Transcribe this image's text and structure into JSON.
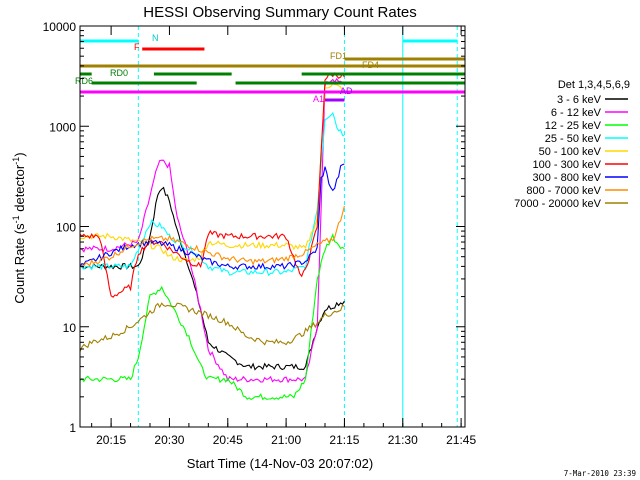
{
  "chart_data": {
    "type": "line",
    "title": "HESSI Observing Summary Count Rates",
    "xlabel": "Start Time (14-Nov-03 20:07:02)",
    "ylabel_main": "Count Rate (s",
    "ylabel_sup1": "-1",
    "ylabel_mid": " detector",
    "ylabel_sup2": "-1",
    "ylabel_end": ")",
    "xlim": [
      "20:07",
      "21:46"
    ],
    "ylim": [
      1,
      10000
    ],
    "y_scale": "log",
    "grid": false,
    "legend_position": "right",
    "x_ticks": [
      "20:15",
      "20:30",
      "20:45",
      "21:00",
      "21:15",
      "21:30",
      "21:45"
    ],
    "y_ticks": [
      "1",
      "10",
      "100",
      "1000",
      "10000"
    ],
    "legend_title": "Det 1,3,4,5,6,9",
    "footer_date": "7-Mar-2010 23:39",
    "series": [
      {
        "name": "3 - 6 keV",
        "color": "#000000",
        "x": [
          "20:07",
          "20:15",
          "20:22",
          "20:25",
          "20:27",
          "20:28",
          "20:30",
          "20:32",
          "20:35",
          "20:38",
          "20:40",
          "20:45",
          "20:50",
          "20:55",
          "21:00",
          "21:05",
          "21:08",
          "21:10",
          "21:12",
          "21:13",
          "21:15"
        ],
        "y": [
          40,
          40,
          40,
          80,
          210,
          250,
          180,
          90,
          40,
          15,
          7,
          5,
          4,
          4,
          4,
          4,
          10,
          15,
          16,
          17,
          18
        ]
      },
      {
        "name": "6 - 12 keV",
        "color": "#ff00ff",
        "x": [
          "20:07",
          "20:15",
          "20:22",
          "20:25",
          "20:27",
          "20:28",
          "20:30",
          "20:32",
          "20:35",
          "20:38",
          "20:40",
          "20:45",
          "20:50",
          "20:55",
          "21:00",
          "21:05",
          "21:08",
          "21:10",
          "21:12",
          "21:13",
          "21:15"
        ],
        "y": [
          60,
          60,
          70,
          200,
          400,
          450,
          400,
          120,
          50,
          15,
          6,
          3,
          3,
          3,
          3,
          3,
          10,
          2500,
          3000,
          2800,
          2600
        ]
      },
      {
        "name": "12 - 25 keV",
        "color": "#00ff00",
        "x": [
          "20:07",
          "20:15",
          "20:20",
          "20:22",
          "20:25",
          "20:28",
          "20:30",
          "20:35",
          "20:38",
          "20:40",
          "20:45",
          "20:50",
          "20:55",
          "21:00",
          "21:02",
          "21:05",
          "21:08",
          "21:10",
          "21:12",
          "21:13",
          "21:15"
        ],
        "y": [
          3,
          3,
          3,
          5,
          20,
          25,
          18,
          8,
          4,
          3,
          3,
          2,
          2,
          2,
          2,
          3,
          30,
          60,
          80,
          70,
          60
        ]
      },
      {
        "name": "25 - 50 keV",
        "color": "#00ffff",
        "x": [
          "20:07",
          "20:15",
          "20:20",
          "20:22",
          "20:25",
          "20:28",
          "20:30",
          "20:35",
          "20:37",
          "20:40",
          "20:45",
          "20:50",
          "20:55",
          "21:00",
          "21:05",
          "21:08",
          "21:10",
          "21:12",
          "21:13",
          "21:14",
          "21:15"
        ],
        "y": [
          40,
          40,
          40,
          60,
          110,
          100,
          80,
          60,
          55,
          40,
          35,
          35,
          35,
          35,
          40,
          150,
          1200,
          1400,
          1000,
          900,
          800
        ]
      },
      {
        "name": "50 - 100 keV",
        "color": "#ffd700",
        "x": [
          "20:07",
          "20:15",
          "20:22",
          "20:25",
          "20:28",
          "20:30",
          "20:35",
          "20:38",
          "20:40",
          "20:45",
          "20:50",
          "20:55",
          "21:00",
          "21:05",
          "21:08",
          "21:10",
          "21:12",
          "21:14",
          "21:15"
        ],
        "y": [
          80,
          80,
          70,
          65,
          60,
          50,
          45,
          50,
          70,
          65,
          65,
          65,
          65,
          60,
          120,
          2500,
          2600,
          2400,
          2300
        ]
      },
      {
        "name": "100 - 300 keV",
        "color": "#ff0000",
        "x": [
          "20:07",
          "20:12",
          "20:15",
          "20:20",
          "20:22",
          "20:25",
          "20:28",
          "20:30",
          "20:35",
          "20:38",
          "20:40",
          "20:45",
          "20:50",
          "20:55",
          "21:00",
          "21:04",
          "21:06",
          "21:08",
          "21:10",
          "21:12",
          "21:14",
          "21:15"
        ],
        "y": [
          80,
          80,
          20,
          25,
          55,
          70,
          70,
          60,
          45,
          40,
          85,
          80,
          80,
          80,
          80,
          30,
          50,
          100,
          3000,
          3300,
          3200,
          3100
        ]
      },
      {
        "name": "300 - 800 keV",
        "color": "#0000ff",
        "x": [
          "20:07",
          "20:10",
          "20:15",
          "20:20",
          "20:25",
          "20:30",
          "20:35",
          "20:40",
          "20:45",
          "20:50",
          "20:55",
          "21:00",
          "21:05",
          "21:08",
          "21:09",
          "21:10",
          "21:11",
          "21:12",
          "21:13",
          "21:14",
          "21:15"
        ],
        "y": [
          40,
          45,
          55,
          65,
          70,
          65,
          55,
          45,
          40,
          40,
          40,
          40,
          45,
          60,
          300,
          380,
          280,
          220,
          280,
          380,
          420
        ]
      },
      {
        "name": "800 - 7000 keV",
        "color": "#ff8c00",
        "x": [
          "20:07",
          "20:15",
          "20:20",
          "20:25",
          "20:30",
          "20:35",
          "20:40",
          "20:45",
          "20:50",
          "20:55",
          "21:00",
          "21:05",
          "21:08",
          "21:10",
          "21:12",
          "21:13",
          "21:14",
          "21:15"
        ],
        "y": [
          40,
          50,
          65,
          75,
          75,
          65,
          55,
          48,
          45,
          45,
          48,
          55,
          65,
          70,
          75,
          90,
          120,
          160
        ]
      },
      {
        "name": "7000 - 20000 keV",
        "color": "#a08000",
        "x": [
          "20:07",
          "20:10",
          "20:15",
          "20:20",
          "20:25",
          "20:28",
          "20:30",
          "20:35",
          "20:40",
          "20:45",
          "20:50",
          "20:55",
          "21:00",
          "21:03",
          "21:05",
          "21:08",
          "21:10",
          "21:12",
          "21:14",
          "21:15"
        ],
        "y": [
          6,
          7,
          8,
          10,
          14,
          17,
          17,
          15,
          13,
          11,
          8,
          7,
          7,
          8,
          9,
          11,
          13,
          14,
          15,
          16
        ]
      }
    ],
    "flag_labels": [
      "N",
      "F",
      "FD1",
      "FD4",
      "RD0",
      "RD6",
      "AD",
      "A1"
    ],
    "flag_bars": [
      {
        "label": "N",
        "color": "#00ffff",
        "segments": [
          [
            "20:07",
            "20:22"
          ],
          [
            "21:30",
            "21:44"
          ]
        ]
      },
      {
        "label": "F",
        "color": "#ff0000",
        "segments": [
          [
            "20:23",
            "20:39"
          ]
        ]
      },
      {
        "label": "FD1",
        "color": "#a08000",
        "segments": [
          [
            "20:07",
            "21:46"
          ]
        ]
      },
      {
        "label": "FD4",
        "color": "#a08000",
        "segments": [
          [
            "21:15",
            "21:46"
          ]
        ]
      },
      {
        "label": "RD0",
        "color": "#008000",
        "segments": [
          [
            "20:07",
            "20:10"
          ],
          [
            "20:26",
            "20:46"
          ],
          [
            "21:04",
            "21:46"
          ]
        ]
      },
      {
        "label": "RD6",
        "color": "#008000",
        "segments": [
          [
            "20:10",
            "20:37"
          ],
          [
            "20:47",
            "21:46"
          ]
        ]
      },
      {
        "label": "AD",
        "color": "#a000ff",
        "segments": [
          [
            "21:10",
            "21:15"
          ]
        ]
      },
      {
        "label": "A1",
        "color": "#ff00ff",
        "segments": [
          [
            "20:07",
            "21:46"
          ]
        ]
      }
    ],
    "vertical_markers": [
      {
        "time": "20:22",
        "color": "#00ffff",
        "style": "dashed"
      },
      {
        "time": "21:15",
        "color": "#00ffff",
        "style": "dashed"
      },
      {
        "time": "21:30",
        "color": "#00ffff",
        "style": "solid"
      },
      {
        "time": "21:44",
        "color": "#00ffff",
        "style": "dashed"
      }
    ]
  }
}
